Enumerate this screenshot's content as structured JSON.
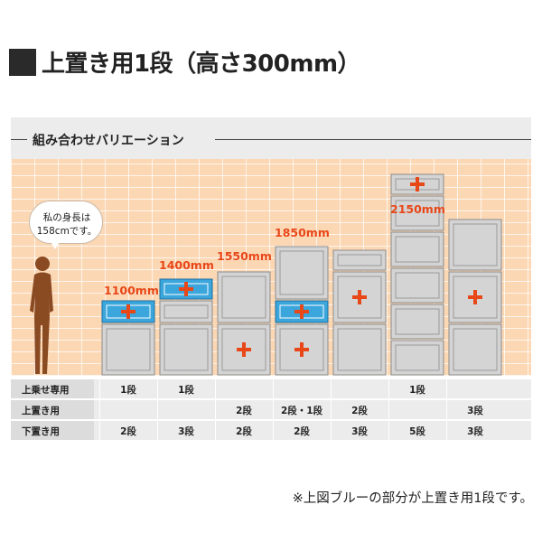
{
  "title": "上置き用1段（高さ300mm）",
  "panel": {
    "label": "組み合わせバリエーション",
    "speech": {
      "line1": "私の身長は",
      "line2": "158cmです。"
    },
    "heights": [
      "1100mm",
      "1400mm",
      "1550mm",
      "1850mm",
      "2150mm"
    ]
  },
  "table": {
    "row_labels": [
      "上乗せ専用",
      "上置き用",
      "下置き用"
    ],
    "columns": [
      {
        "top_only": "1段",
        "upper": "",
        "lower": "2段"
      },
      {
        "top_only": "1段",
        "upper": "",
        "lower": "3段"
      },
      {
        "top_only": "",
        "upper": "2段",
        "lower": "2段"
      },
      {
        "top_only": "",
        "upper": "2段・1段",
        "lower": "2段"
      },
      {
        "top_only": "",
        "upper": "2段",
        "lower": "3段"
      },
      {
        "top_only": "1段",
        "upper": "",
        "lower": "5段"
      },
      {
        "top_only": "",
        "upper": "3段",
        "lower": "3段"
      }
    ]
  },
  "footnote": "※上図ブルーの部分が上置き用1段です。",
  "colors": {
    "accent": "#e84718",
    "blue_unit": "#3aa6dc",
    "wall": "#fbd7b4",
    "person": "#8a4a22",
    "unit_grey": "#d4d4d4"
  }
}
